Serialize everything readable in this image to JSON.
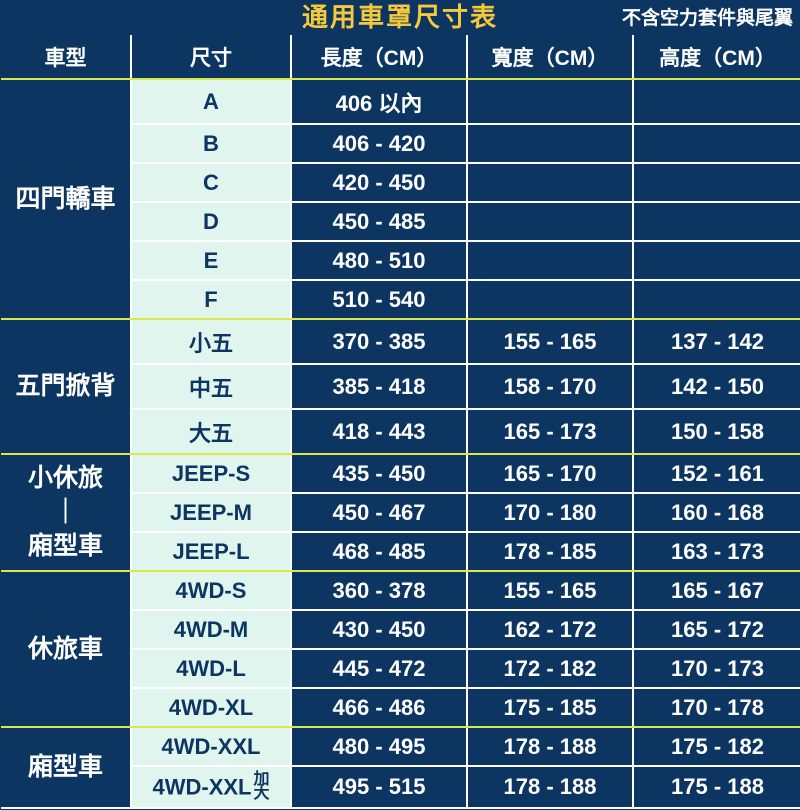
{
  "title": "通用車罩尺寸表",
  "note": "不含空力套件與尾翼",
  "columns": [
    "車型",
    "尺寸",
    "長度（CM）",
    "寬度（CM）",
    "高度（CM）"
  ],
  "groups": [
    {
      "category": "四門轎車",
      "rows": [
        {
          "size": "A",
          "len": "406 以內",
          "wid": "",
          "hei": ""
        },
        {
          "size": "B",
          "len": "406 - 420",
          "wid": "",
          "hei": ""
        },
        {
          "size": "C",
          "len": "420 - 450",
          "wid": "",
          "hei": ""
        },
        {
          "size": "D",
          "len": "450 - 485",
          "wid": "",
          "hei": ""
        },
        {
          "size": "E",
          "len": "480 - 510",
          "wid": "",
          "hei": ""
        },
        {
          "size": "F",
          "len": "510 - 540",
          "wid": "",
          "hei": ""
        }
      ]
    },
    {
      "category": "五門掀背",
      "rows": [
        {
          "size": "小五",
          "len": "370 - 385",
          "wid": "155 - 165",
          "hei": "137 - 142"
        },
        {
          "size": "中五",
          "len": "385 - 418",
          "wid": "158 - 170",
          "hei": "142 - 150"
        },
        {
          "size": "大五",
          "len": "418 - 443",
          "wid": "165 - 173",
          "hei": "150 - 158"
        }
      ]
    },
    {
      "category": "小休旅｜廂型車",
      "category_multiline": [
        "小休旅",
        "｜",
        "廂型車"
      ],
      "rows": [
        {
          "size": "JEEP-S",
          "len": "435 - 450",
          "wid": "165 - 170",
          "hei": "152 - 161"
        },
        {
          "size": "JEEP-M",
          "len": "450 - 467",
          "wid": "170 - 180",
          "hei": "160 - 168"
        },
        {
          "size": "JEEP-L",
          "len": "468 - 485",
          "wid": "178 - 185",
          "hei": "163 - 173"
        }
      ]
    },
    {
      "category": "休旅車",
      "rows": [
        {
          "size": "4WD-S",
          "len": "360 - 378",
          "wid": "155 - 165",
          "hei": "165 - 167"
        },
        {
          "size": "4WD-M",
          "len": "430 - 450",
          "wid": "162 - 172",
          "hei": "165 - 172"
        },
        {
          "size": "4WD-L",
          "len": "445 - 472",
          "wid": "172 - 182",
          "hei": "170 - 173"
        },
        {
          "size": "4WD-XL",
          "len": "466 - 486",
          "wid": "175 - 185",
          "hei": "170 - 178"
        }
      ]
    },
    {
      "category": "廂型車",
      "rows": [
        {
          "size": "4WD-XXL",
          "len": "480 - 495",
          "wid": "178 - 188",
          "hei": "175 - 182"
        },
        {
          "size": "4WD-XXL",
          "size_suffix": "加大",
          "len": "495 - 515",
          "wid": "178 - 188",
          "hei": "175 - 188"
        }
      ]
    }
  ],
  "colors": {
    "header_bg": "#0d3562",
    "title_text": "#f5c93b",
    "accent_line": "#d9e84a",
    "size_bg": "#dff5ed",
    "text_light": "#ffffff",
    "text_dark": "#0d3562"
  },
  "font_sizes": {
    "title": 26,
    "note": 19,
    "th": 21,
    "cat": 25,
    "cell": 22
  }
}
